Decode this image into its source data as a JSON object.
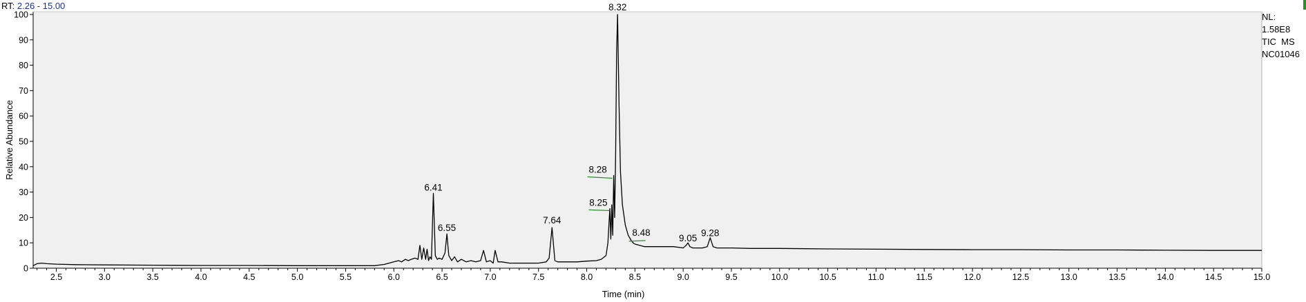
{
  "header": {
    "rt_label": "RT:",
    "rt_range": "2.26 - 15.00"
  },
  "info": {
    "nl_label": "NL:",
    "nl_value": "1.58E8",
    "scan_type": "TIC  MS",
    "sample": "NC01046"
  },
  "colors": {
    "plot_bg": "#f0f0f0",
    "trace": "#000000",
    "header_value": "#1a2fa0",
    "marker": "#2e8b2e"
  },
  "chart_data": {
    "type": "line",
    "title": "",
    "xlabel": "Time (min)",
    "ylabel": "Relative Abundance",
    "xlim": [
      2.26,
      15.0
    ],
    "ylim": [
      0,
      100
    ],
    "grid": false,
    "x_ticks": [
      "2.5",
      "3.0",
      "3.5",
      "4.0",
      "4.5",
      "5.0",
      "5.5",
      "6.0",
      "6.5",
      "7.0",
      "7.5",
      "8.0",
      "8.5",
      "9.0",
      "9.5",
      "10.0",
      "10.5",
      "11.0",
      "11.5",
      "12.0",
      "12.5",
      "13.0",
      "13.5",
      "14.0",
      "14.5",
      "15.0"
    ],
    "y_ticks": [
      "0",
      "10",
      "20",
      "30",
      "40",
      "50",
      "60",
      "70",
      "80",
      "90",
      "100"
    ],
    "peak_labels": [
      {
        "rt": "6.41",
        "x": 6.41,
        "y": 29
      },
      {
        "rt": "6.55",
        "x": 6.55,
        "y": 13
      },
      {
        "rt": "7.64",
        "x": 7.64,
        "y": 16
      },
      {
        "rt": "8.25",
        "x": 8.25,
        "y": 23
      },
      {
        "rt": "8.28",
        "x": 8.28,
        "y": 36
      },
      {
        "rt": "8.32",
        "x": 8.32,
        "y": 100
      },
      {
        "rt": "8.48",
        "x": 8.48,
        "y": 12
      },
      {
        "rt": "9.05",
        "x": 9.05,
        "y": 9
      },
      {
        "rt": "9.28",
        "x": 9.28,
        "y": 11
      }
    ],
    "series": [
      {
        "x": [
          2.26,
          2.3,
          2.35,
          2.4,
          2.5,
          2.7,
          3.0,
          3.5,
          4.0,
          4.5,
          5.0,
          5.5,
          5.8,
          5.9,
          5.95,
          6.0,
          6.05,
          6.08,
          6.12,
          6.15,
          6.18,
          6.22,
          6.25,
          6.27,
          6.29,
          6.31,
          6.33,
          6.345,
          6.36,
          6.375,
          6.39,
          6.41,
          6.43,
          6.45,
          6.47,
          6.5,
          6.53,
          6.55,
          6.57,
          6.6,
          6.63,
          6.66,
          6.7,
          6.75,
          6.8,
          6.85,
          6.9,
          6.93,
          6.96,
          7.0,
          7.03,
          7.05,
          7.08,
          7.12,
          7.2,
          7.3,
          7.4,
          7.5,
          7.58,
          7.61,
          7.64,
          7.67,
          7.7,
          7.8,
          7.9,
          8.0,
          8.1,
          8.15,
          8.2,
          8.22,
          8.24,
          8.25,
          8.26,
          8.27,
          8.28,
          8.29,
          8.3,
          8.31,
          8.32,
          8.335,
          8.35,
          8.37,
          8.4,
          8.43,
          8.46,
          8.48,
          8.5,
          8.55,
          8.6,
          8.7,
          8.8,
          8.9,
          9.0,
          9.03,
          9.05,
          9.07,
          9.1,
          9.2,
          9.25,
          9.28,
          9.31,
          9.35,
          9.5,
          9.7,
          10.0,
          10.5,
          11.0,
          11.5,
          12.0,
          12.5,
          13.0,
          13.5,
          14.0,
          14.5,
          15.0
        ],
        "y": [
          1,
          1.8,
          2.0,
          1.8,
          1.6,
          1.4,
          1.3,
          1.2,
          1.1,
          1.1,
          1.0,
          1.0,
          1.0,
          1.5,
          2.0,
          2.5,
          3.0,
          2.5,
          3.5,
          3.0,
          3.5,
          4.0,
          3.5,
          9.0,
          3.5,
          8.0,
          3.5,
          7.5,
          3.0,
          4.5,
          3.5,
          29.5,
          5.0,
          3.5,
          4.0,
          3.5,
          6.0,
          13.5,
          5.0,
          3.0,
          4.5,
          2.5,
          3.5,
          2.5,
          3.0,
          2.5,
          3.0,
          7.0,
          2.5,
          3.0,
          2.0,
          7.0,
          2.5,
          2.5,
          2.0,
          2.0,
          2.0,
          2.0,
          2.5,
          4.0,
          16.0,
          3.0,
          2.5,
          2.5,
          2.5,
          2.8,
          3.0,
          3.5,
          5.0,
          10.0,
          23.5,
          11.5,
          25.0,
          13.0,
          36.5,
          20.0,
          45.0,
          85.0,
          100.0,
          65.0,
          38.0,
          25.0,
          17.0,
          13.0,
          11.0,
          10.0,
          9.5,
          9.0,
          8.5,
          8.5,
          8.5,
          8.5,
          8.0,
          9.0,
          10.0,
          8.5,
          8.0,
          8.0,
          8.5,
          12.0,
          8.5,
          8.0,
          8.0,
          7.8,
          7.8,
          7.6,
          7.5,
          7.4,
          7.3,
          7.3,
          7.2,
          7.2,
          7.1,
          7.0,
          7.0
        ]
      }
    ]
  }
}
